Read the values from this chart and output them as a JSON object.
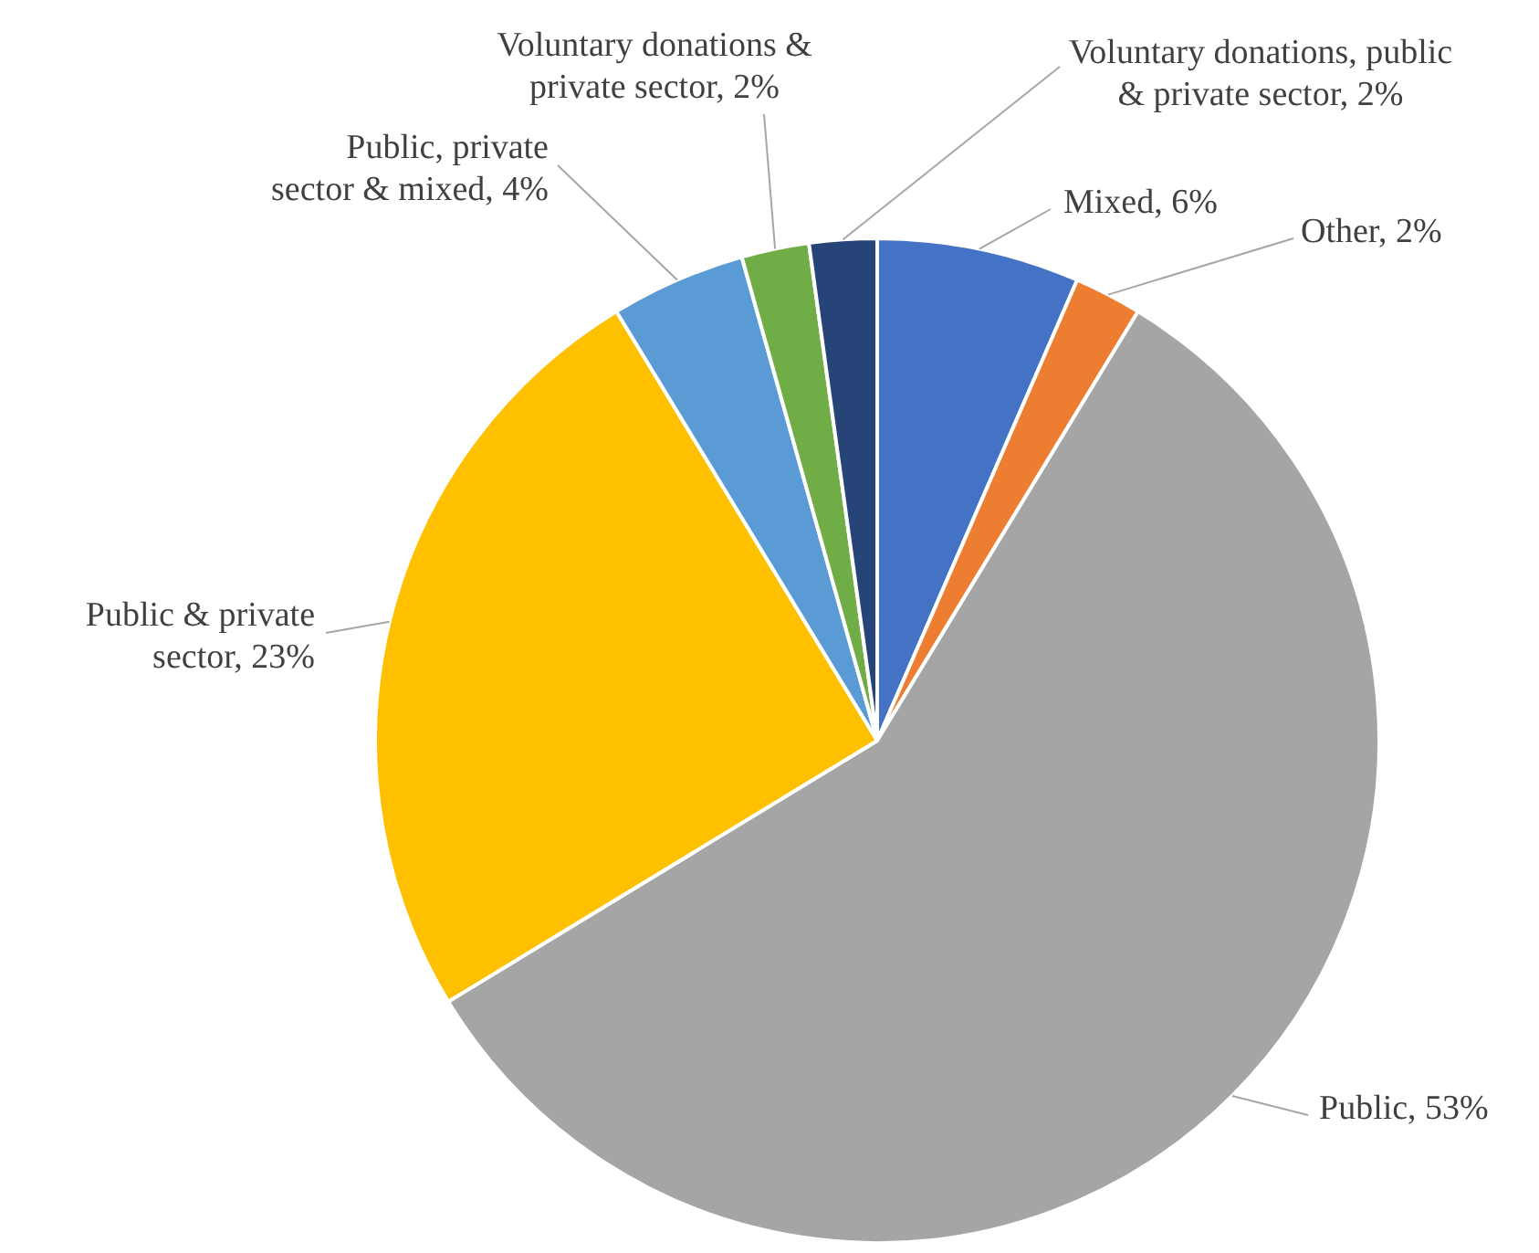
{
  "chart_data": {
    "type": "pie",
    "categories": [
      "Mixed",
      "Other",
      "Public",
      "Public & private sector",
      "Public, private sector & mixed",
      "Voluntary donations & private sector",
      "Voluntary donations, public & private sector"
    ],
    "values": [
      6,
      2,
      53,
      23,
      4,
      2,
      2
    ],
    "value_labels": [
      "6%",
      "2%",
      "53%",
      "23%",
      "4%",
      "2%",
      "2%"
    ],
    "colors": [
      "#4472c4",
      "#ed7d31",
      "#a5a5a5",
      "#ffc000",
      "#5b9bd5",
      "#70ad47",
      "#264478"
    ]
  }
}
